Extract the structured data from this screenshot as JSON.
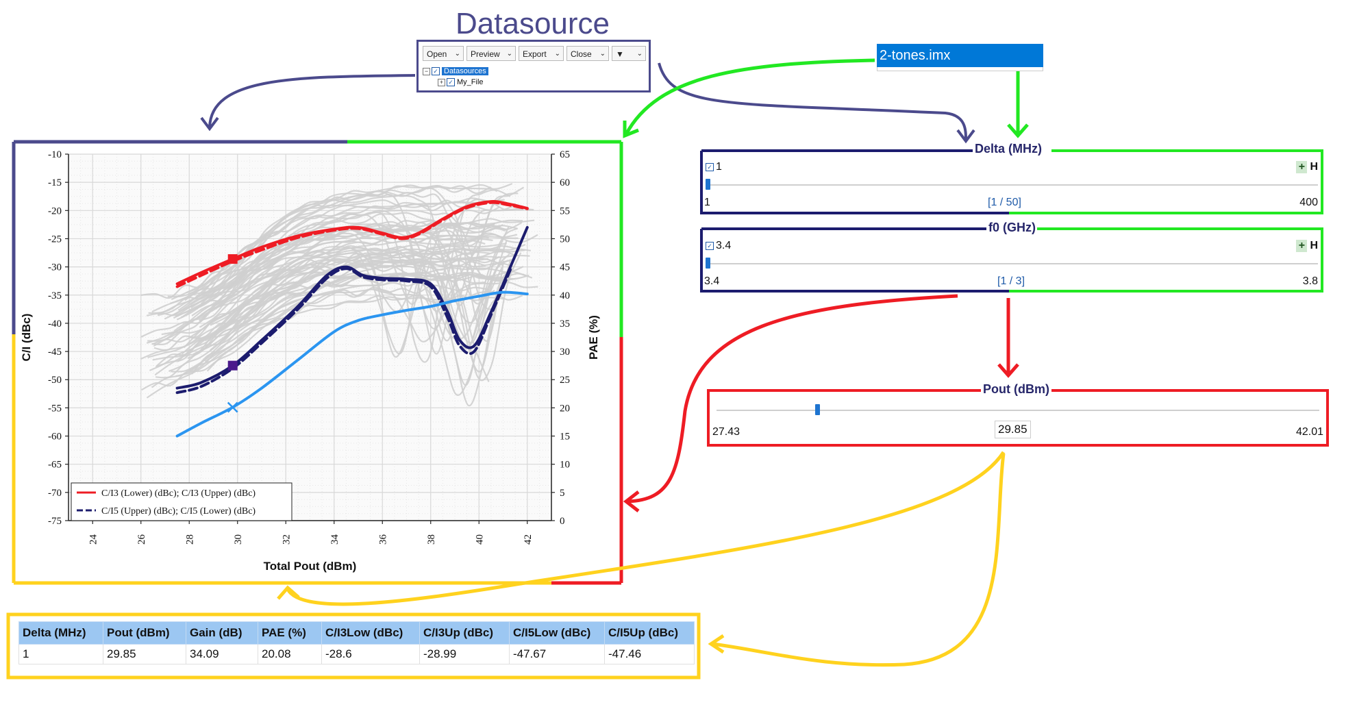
{
  "datasource": {
    "title": "Datasource",
    "toolbar": [
      {
        "label": "Open"
      },
      {
        "label": "Preview"
      },
      {
        "label": "Export"
      },
      {
        "label": "Close"
      },
      {
        "label": ""
      }
    ],
    "tree": [
      {
        "label": "Datasources",
        "selected": true
      },
      {
        "label": "My_File",
        "selected": false
      }
    ]
  },
  "file": {
    "name": "2-tones.imx"
  },
  "sliders": {
    "delta": {
      "title": "Delta (MHz)",
      "checked_value": "1",
      "min": "1",
      "index": "[1 / 50]",
      "max": "400",
      "fraction": 0.0
    },
    "f0": {
      "title": "f0 (GHz)",
      "checked_value": "3.4",
      "min": "3.4",
      "index": "[1 / 3]",
      "max": "3.8",
      "fraction": 0.0
    },
    "pout": {
      "title": "Pout (dBm)",
      "min": "27.43",
      "current": "29.85",
      "max": "42.01",
      "fraction": 0.166
    }
  },
  "table": {
    "headers": [
      "Delta (MHz)",
      "Pout (dBm)",
      "Gain (dB)",
      "PAE (%)",
      "C/I3Low (dBc)",
      "C/I3Up (dBc)",
      "C/I5Low (dBc)",
      "C/I5Up (dBc)"
    ],
    "rows": [
      [
        "1",
        "29.85",
        "34.09",
        "20.08",
        "-28.6",
        "-28.99",
        "-47.67",
        "-47.46"
      ]
    ]
  },
  "colors": {
    "purple": "#4b4a8c",
    "green": "#22e822",
    "red": "#ee1c24",
    "yellow": "#ffd21e",
    "navy": "#1c1c6e",
    "ci3": "#ee1c24",
    "ci5": "#1c1c6e",
    "pae": "#2b95f0",
    "grey": "#cfcfcf"
  },
  "chart_data": {
    "type": "line",
    "xlabel": "Total Pout (dBm)",
    "ylabel": "C/I (dBc)",
    "y2label": "PAE (%)",
    "xlim": [
      23,
      43
    ],
    "ylim": [
      -75,
      -10
    ],
    "y2lim": [
      0,
      65
    ],
    "xticks": [
      24,
      26,
      28,
      30,
      32,
      34,
      36,
      38,
      40,
      42
    ],
    "yticks": [
      -10,
      -15,
      -20,
      -25,
      -30,
      -35,
      -40,
      -45,
      -50,
      -55,
      -60,
      -65,
      -70,
      -75
    ],
    "y2ticks": [
      65,
      60,
      55,
      50,
      45,
      40,
      35,
      30,
      25,
      20,
      15,
      10,
      5,
      0
    ],
    "grid": true,
    "legend_position": "bottom-left",
    "legend": [
      "C/I3 (Lower) (dBc); C/I3 (Upper) (dBc)",
      "C/I5 (Upper) (dBc); C/I5 (Lower) (dBc)"
    ],
    "series": [
      {
        "name": "C/I3 (Lower) (dBc)",
        "axis": "left",
        "style": "solid",
        "x": [
          27.5,
          28.5,
          29.8,
          31,
          32.5,
          34,
          35,
          36,
          36.8,
          37.5,
          38.5,
          39.5,
          40.5,
          41.2,
          42
        ],
        "y": [
          -33,
          -31,
          -28.6,
          -26.5,
          -24.5,
          -23.3,
          -23,
          -24,
          -24.8,
          -24,
          -21.5,
          -19.3,
          -18.4,
          -18.8,
          -19.6
        ]
      },
      {
        "name": "C/I3 (Upper) (dBc)",
        "axis": "left",
        "style": "dashed",
        "x": [
          27.5,
          28.5,
          29.8,
          31,
          32.5,
          34,
          35,
          36,
          36.8,
          37.5,
          38.5,
          39.5,
          40.5,
          41.2,
          42
        ],
        "y": [
          -33.5,
          -31.5,
          -29,
          -27,
          -24.8,
          -23.5,
          -23.2,
          -24.2,
          -25,
          -24.2,
          -21.7,
          -19.5,
          -18.6,
          -19,
          -19.7
        ]
      },
      {
        "name": "C/I5 (Upper) (dBc)",
        "axis": "left",
        "style": "solid",
        "x": [
          27.5,
          28.5,
          29.8,
          31,
          32.5,
          33.7,
          34.5,
          35.2,
          36,
          37,
          38,
          38.7,
          39.2,
          39.8,
          40.5,
          41.3,
          42
        ],
        "y": [
          -51.5,
          -50.5,
          -47.5,
          -43,
          -37,
          -31.5,
          -30,
          -31.5,
          -32,
          -32.2,
          -33,
          -38,
          -43,
          -44,
          -38,
          -30,
          -23
        ]
      },
      {
        "name": "C/I5 (Lower) (dBc)",
        "axis": "left",
        "style": "dashed",
        "x": [
          27.5,
          28.5,
          29.8,
          31,
          32.5,
          33.7,
          34.5,
          35.2,
          36,
          37,
          38,
          38.7,
          39.2,
          39.8,
          40.5,
          41.3
        ],
        "y": [
          -52.3,
          -51.2,
          -48,
          -43.5,
          -37.5,
          -32,
          -30.3,
          -31.8,
          -32.3,
          -32.5,
          -33.5,
          -39,
          -44,
          -45,
          -38.5,
          -30.5
        ]
      },
      {
        "name": "PAE (%)",
        "axis": "right",
        "style": "solid",
        "x": [
          27.5,
          28.5,
          29.8,
          31,
          32.5,
          34,
          35,
          36,
          37,
          38,
          39,
          40,
          41,
          42
        ],
        "y": [
          15,
          17.3,
          20.1,
          23.5,
          28.5,
          33.5,
          35.5,
          36.5,
          37.3,
          38,
          39,
          39.8,
          40.5,
          40.2
        ]
      }
    ],
    "markers": [
      {
        "series": "C/I3",
        "x": 29.8,
        "y": -28.6,
        "shape": "square"
      },
      {
        "series": "C/I5",
        "x": 29.8,
        "y": -47.5,
        "shape": "square"
      },
      {
        "series": "PAE",
        "x": 29.8,
        "y": 20.1,
        "shape": "cross"
      }
    ]
  }
}
